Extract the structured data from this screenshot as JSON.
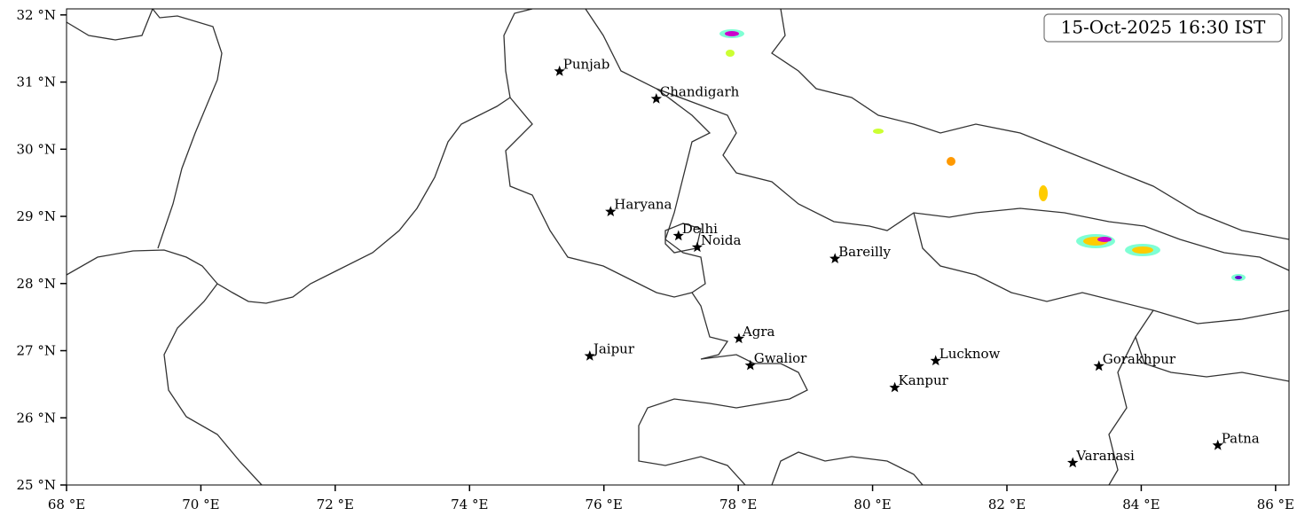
{
  "chart_data": {
    "type": "map",
    "title": "15-Oct-2025 16:30 IST",
    "xlim": [
      68,
      86.2
    ],
    "ylim": [
      25,
      32.09
    ],
    "xticks": [
      {
        "value": 68,
        "label": "68 °E"
      },
      {
        "value": 70,
        "label": "70 °E"
      },
      {
        "value": 72,
        "label": "72 °E"
      },
      {
        "value": 74,
        "label": "74 °E"
      },
      {
        "value": 76,
        "label": "76 °E"
      },
      {
        "value": 78,
        "label": "78 °E"
      },
      {
        "value": 80,
        "label": "80 °E"
      },
      {
        "value": 82,
        "label": "82 °E"
      },
      {
        "value": 84,
        "label": "84 °E"
      },
      {
        "value": 86,
        "label": "86 °E"
      }
    ],
    "yticks": [
      {
        "value": 25,
        "label": "25 °N"
      },
      {
        "value": 26,
        "label": "26 °N"
      },
      {
        "value": 27,
        "label": "27 °N"
      },
      {
        "value": 28,
        "label": "28 °N"
      },
      {
        "value": 29,
        "label": "29 °N"
      },
      {
        "value": 30,
        "label": "30 °N"
      },
      {
        "value": 31,
        "label": "31 °N"
      },
      {
        "value": 32,
        "label": "32 °N"
      }
    ],
    "points": {
      "names": [
        "Punjab",
        "Chandigarh",
        "Haryana",
        "Delhi",
        "Noida",
        "Bareilly",
        "Agra",
        "Jaipur",
        "Gwalior",
        "Lucknow",
        "Kanpur",
        "Gorakhpur",
        "Varanasi",
        "Patna"
      ],
      "lon": [
        75.34,
        76.78,
        76.1,
        77.11,
        77.39,
        79.44,
        78.01,
        75.79,
        78.18,
        80.94,
        80.33,
        83.37,
        82.98,
        85.14
      ],
      "lat": [
        31.16,
        30.75,
        29.07,
        28.71,
        28.54,
        28.37,
        27.18,
        26.92,
        26.78,
        26.85,
        26.45,
        26.77,
        25.33,
        25.59
      ],
      "color": "#000000"
    }
  }
}
